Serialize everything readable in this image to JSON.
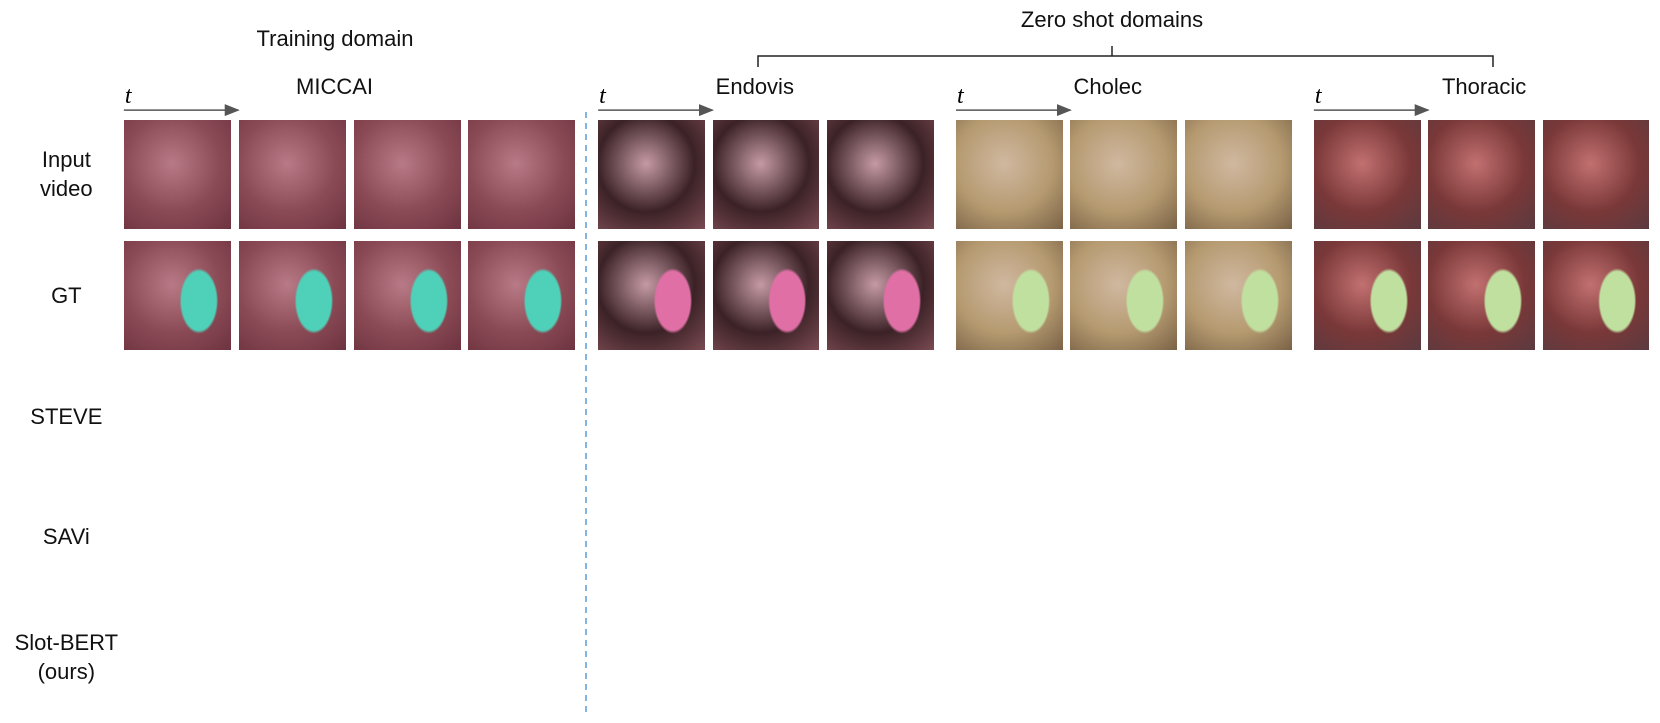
{
  "header": {
    "training": "Training domain",
    "zero_shot": "Zero shot domains"
  },
  "domains": [
    {
      "name": "MICCAI",
      "time_label": "t"
    },
    {
      "name": "Endovis",
      "time_label": "t"
    },
    {
      "name": "Cholec",
      "time_label": "t"
    },
    {
      "name": "Thoracic",
      "time_label": "t"
    }
  ],
  "rows": [
    {
      "lines": [
        "Input",
        "video"
      ]
    },
    {
      "lines": [
        "GT"
      ]
    },
    {
      "lines": [
        "STEVE"
      ]
    },
    {
      "lines": [
        "SAVi"
      ]
    },
    {
      "lines": [
        "Slot-BERT",
        "(ours)"
      ]
    }
  ]
}
